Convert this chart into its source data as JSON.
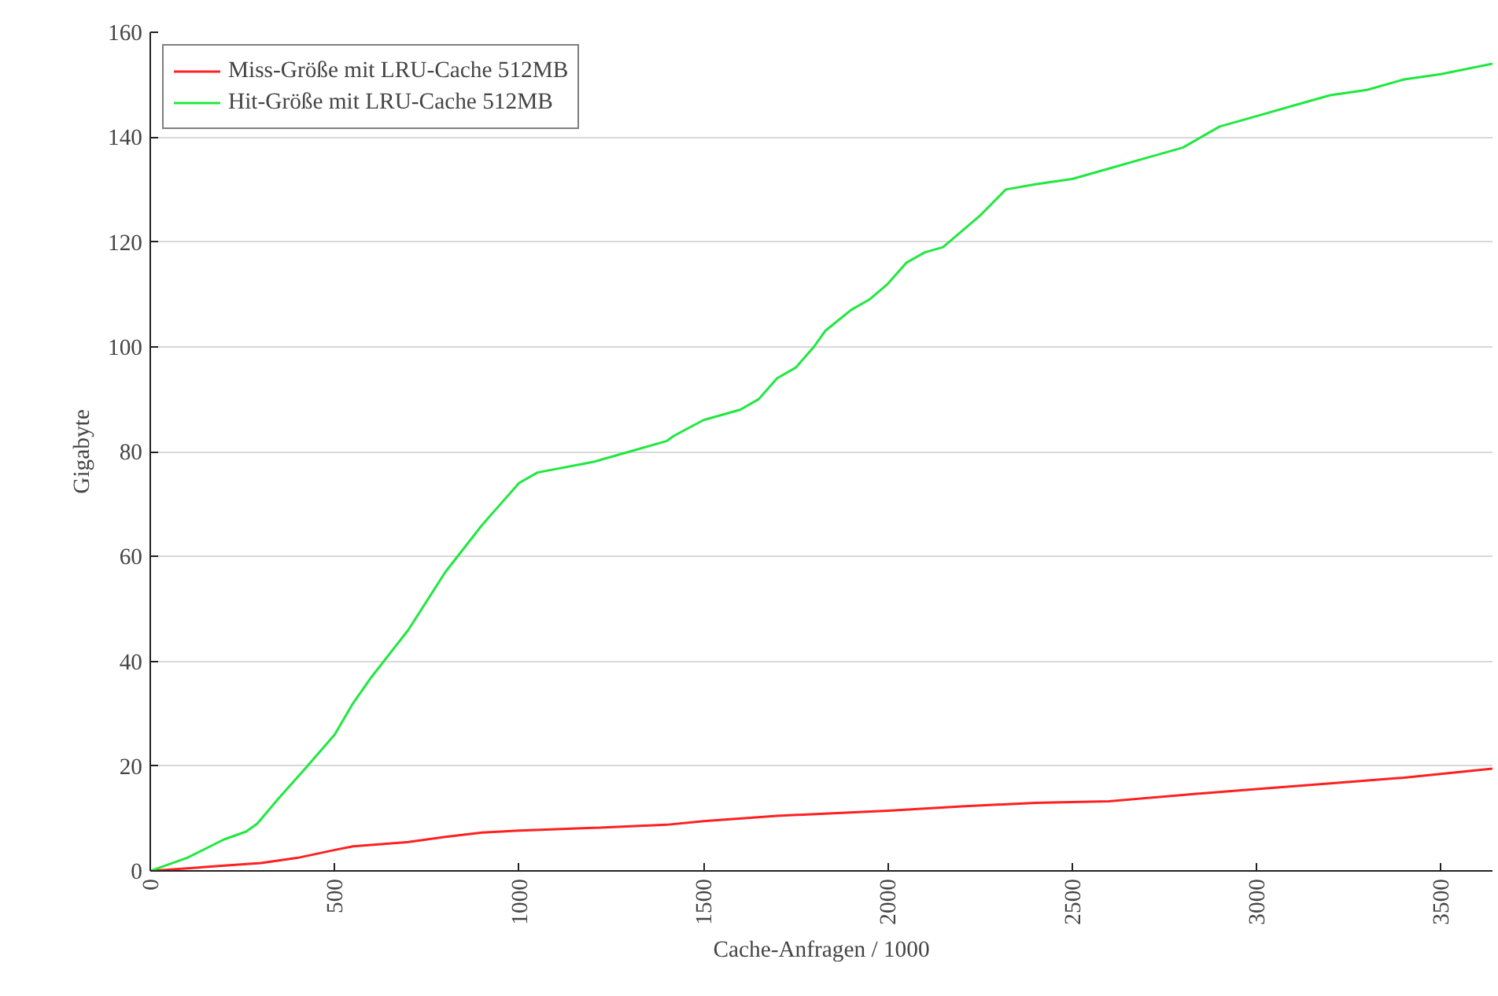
{
  "chart_data": {
    "type": "line",
    "xlabel": "Cache-Anfragen / 1000",
    "ylabel": "Gigabyte",
    "xlim": [
      0,
      3640
    ],
    "ylim": [
      0,
      160
    ],
    "xticks": [
      0,
      500,
      1000,
      1500,
      2000,
      2500,
      3000,
      3500
    ],
    "yticks": [
      0,
      20,
      40,
      60,
      80,
      100,
      120,
      140,
      160
    ],
    "grid": "y",
    "legend": "top left",
    "marker": "none",
    "line_style": "solid",
    "series": [
      {
        "name": "Miss-Größe mit LRU-Cache 512MB",
        "color": "#ff2020",
        "x": [
          0,
          200,
          300,
          400,
          500,
          550,
          700,
          800,
          900,
          1000,
          1200,
          1400,
          1500,
          1700,
          2000,
          2200,
          2400,
          2600,
          2800,
          3000,
          3200,
          3400,
          3640
        ],
        "values": [
          0,
          1,
          1.5,
          2.5,
          4,
          4.7,
          5.5,
          6.5,
          7.3,
          7.7,
          8.2,
          8.8,
          9.5,
          10.5,
          11.5,
          12.3,
          13,
          13.3,
          14.5,
          15.6,
          16.7,
          17.8,
          19.5
        ]
      },
      {
        "name": "Hit-Größe mit LRU-Cache 512MB",
        "color": "#20e840",
        "x": [
          0,
          100,
          200,
          260,
          290,
          350,
          420,
          500,
          550,
          600,
          700,
          800,
          900,
          950,
          1000,
          1050,
          1200,
          1300,
          1400,
          1420,
          1500,
          1600,
          1650,
          1700,
          1750,
          1800,
          1830,
          1900,
          1950,
          2000,
          2050,
          2100,
          2150,
          2250,
          2320,
          2400,
          2500,
          2600,
          2700,
          2800,
          2900,
          3000,
          3100,
          3200,
          3300,
          3400,
          3500,
          3640
        ],
        "values": [
          0,
          2.5,
          6,
          7.5,
          9,
          14,
          19.5,
          26,
          32,
          37,
          46,
          57,
          66,
          70,
          74,
          76,
          78,
          80,
          82,
          83,
          86,
          88,
          90,
          94,
          96,
          100,
          103,
          107,
          109,
          112,
          116,
          118,
          119,
          125,
          130,
          131,
          132,
          134,
          136,
          138,
          142,
          144,
          146,
          148,
          149,
          151,
          152,
          154
        ]
      }
    ]
  }
}
